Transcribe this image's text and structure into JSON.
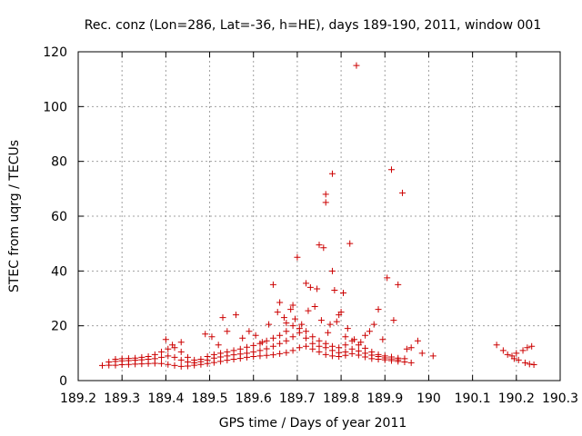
{
  "chart_data": {
    "type": "scatter",
    "title": "Rec. conz (Lon=286, Lat=-36, h=HE), days 189-190, 2011, window 001",
    "xlabel": "GPS time / Days of year 2011",
    "ylabel": "STEC from uqrg / TECUs",
    "xlim": [
      189.2,
      190.3
    ],
    "ylim": [
      0,
      120
    ],
    "xticks": [
      189.2,
      189.3,
      189.4,
      189.5,
      189.6,
      189.7,
      189.8,
      189.9,
      190.0,
      190.1,
      190.2,
      190.3
    ],
    "xtick_labels": [
      "189.2",
      "189.3",
      "189.4",
      "189.5",
      "189.6",
      "189.7",
      "189.8",
      "189.9",
      "190",
      "190.1",
      "190.2",
      "190.3"
    ],
    "yticks": [
      0,
      20,
      40,
      60,
      80,
      100,
      120
    ],
    "ytick_labels": [
      "0",
      "20",
      "40",
      "60",
      "80",
      "100",
      "120"
    ],
    "grid": true,
    "legend": "none",
    "marker": "plus",
    "color": "#cc0000",
    "series": [
      {
        "points": [
          [
            189.255,
            5.5
          ],
          [
            189.27,
            5.6
          ],
          [
            189.285,
            5.6
          ],
          [
            189.3,
            5.8
          ],
          [
            189.315,
            5.9
          ],
          [
            189.33,
            6.0
          ],
          [
            189.345,
            6.1
          ],
          [
            189.36,
            6.2
          ],
          [
            189.375,
            6.3
          ],
          [
            189.39,
            6.2
          ],
          [
            189.405,
            5.9
          ],
          [
            189.42,
            5.5
          ],
          [
            189.435,
            5.2
          ],
          [
            189.45,
            5.3
          ],
          [
            189.465,
            5.6
          ],
          [
            189.48,
            5.9
          ],
          [
            189.495,
            6.2
          ],
          [
            189.51,
            6.6
          ],
          [
            189.525,
            7.0
          ],
          [
            189.54,
            7.4
          ],
          [
            189.555,
            7.8
          ],
          [
            189.57,
            8.1
          ],
          [
            189.585,
            8.5
          ],
          [
            189.6,
            8.8
          ],
          [
            189.615,
            9.0
          ],
          [
            189.63,
            9.2
          ],
          [
            189.645,
            9.4
          ],
          [
            189.66,
            9.8
          ],
          [
            189.675,
            10.2
          ],
          [
            189.69,
            11.0
          ],
          [
            189.705,
            12.0
          ],
          [
            189.72,
            12.5
          ],
          [
            189.735,
            11.5
          ],
          [
            189.75,
            10.5
          ],
          [
            189.765,
            9.5
          ],
          [
            189.78,
            9.0
          ],
          [
            189.795,
            8.8
          ],
          [
            189.81,
            9.2
          ],
          [
            189.825,
            9.8
          ],
          [
            189.84,
            9.3
          ],
          [
            189.855,
            8.6
          ],
          [
            189.87,
            8.0
          ],
          [
            189.885,
            7.8
          ],
          [
            189.9,
            7.6
          ],
          [
            189.915,
            7.3
          ],
          [
            189.93,
            7.0
          ],
          [
            189.945,
            6.8
          ],
          [
            189.96,
            6.5
          ],
          [
            189.27,
            6.8
          ],
          [
            189.285,
            7.0
          ],
          [
            189.3,
            7.2
          ],
          [
            189.315,
            7.3
          ],
          [
            189.33,
            7.4
          ],
          [
            189.345,
            7.6
          ],
          [
            189.36,
            7.8
          ],
          [
            189.375,
            8.0
          ],
          [
            189.39,
            8.5
          ],
          [
            189.405,
            9.0
          ],
          [
            189.42,
            8.5
          ],
          [
            189.435,
            7.5
          ],
          [
            189.45,
            6.8
          ],
          [
            189.465,
            6.5
          ],
          [
            189.48,
            6.9
          ],
          [
            189.495,
            7.5
          ],
          [
            189.51,
            8.2
          ],
          [
            189.525,
            8.6
          ],
          [
            189.54,
            9.0
          ],
          [
            189.555,
            9.4
          ],
          [
            189.57,
            9.7
          ],
          [
            189.585,
            10.0
          ],
          [
            189.6,
            10.5
          ],
          [
            189.615,
            11.0
          ],
          [
            189.63,
            11.6
          ],
          [
            189.645,
            12.5
          ],
          [
            189.66,
            13.5
          ],
          [
            189.675,
            14.5
          ],
          [
            189.69,
            16.0
          ],
          [
            189.705,
            17.5
          ],
          [
            189.72,
            15.5
          ],
          [
            189.735,
            13.5
          ],
          [
            189.75,
            12.5
          ],
          [
            189.765,
            12.0
          ],
          [
            189.78,
            11.0
          ],
          [
            189.795,
            10.2
          ],
          [
            189.81,
            10.5
          ],
          [
            189.825,
            11.5
          ],
          [
            189.84,
            10.8
          ],
          [
            189.855,
            10.0
          ],
          [
            189.87,
            9.3
          ],
          [
            189.885,
            8.8
          ],
          [
            189.9,
            8.3
          ],
          [
            189.915,
            7.9
          ],
          [
            189.93,
            7.6
          ],
          [
            189.285,
            7.8
          ],
          [
            189.3,
            8.0
          ],
          [
            189.315,
            8.1
          ],
          [
            189.33,
            8.2
          ],
          [
            189.345,
            8.5
          ],
          [
            189.36,
            8.8
          ],
          [
            189.375,
            9.5
          ],
          [
            189.39,
            10.5
          ],
          [
            189.405,
            11.5
          ],
          [
            189.42,
            12.0
          ],
          [
            189.435,
            10.5
          ],
          [
            189.45,
            8.5
          ],
          [
            189.465,
            7.5
          ],
          [
            189.48,
            7.8
          ],
          [
            189.495,
            8.8
          ],
          [
            189.51,
            9.5
          ],
          [
            189.525,
            10.0
          ],
          [
            189.54,
            10.5
          ],
          [
            189.555,
            11.0
          ],
          [
            189.57,
            11.5
          ],
          [
            189.585,
            12.2
          ],
          [
            189.6,
            12.8
          ],
          [
            189.615,
            13.5
          ],
          [
            189.63,
            14.5
          ],
          [
            189.645,
            15.5
          ],
          [
            189.66,
            16.5
          ],
          [
            189.675,
            18.0
          ],
          [
            189.69,
            20.0
          ],
          [
            189.705,
            19.0
          ],
          [
            189.72,
            18.0
          ],
          [
            189.735,
            16.0
          ],
          [
            189.75,
            14.5
          ],
          [
            189.765,
            13.5
          ],
          [
            189.78,
            12.5
          ],
          [
            189.795,
            12.0
          ],
          [
            189.81,
            13.0
          ],
          [
            189.825,
            14.5
          ],
          [
            189.84,
            13.0
          ],
          [
            189.855,
            11.8
          ],
          [
            189.87,
            10.5
          ],
          [
            189.885,
            9.5
          ],
          [
            189.9,
            9.0
          ],
          [
            189.915,
            8.6
          ],
          [
            189.93,
            8.2
          ],
          [
            189.945,
            8.0
          ],
          [
            189.4,
            15.0
          ],
          [
            189.415,
            13.0
          ],
          [
            189.435,
            14.0
          ],
          [
            189.49,
            17.0
          ],
          [
            189.505,
            16.0
          ],
          [
            189.52,
            13.0
          ],
          [
            189.53,
            23.0
          ],
          [
            189.54,
            18.0
          ],
          [
            189.56,
            24.0
          ],
          [
            189.575,
            15.5
          ],
          [
            189.59,
            18.0
          ],
          [
            189.605,
            16.5
          ],
          [
            189.62,
            14.0
          ],
          [
            189.635,
            20.5
          ],
          [
            189.645,
            35.0
          ],
          [
            189.655,
            25.0
          ],
          [
            189.66,
            28.5
          ],
          [
            189.67,
            23.0
          ],
          [
            189.675,
            21.0
          ],
          [
            189.685,
            26.0
          ],
          [
            189.69,
            27.5
          ],
          [
            189.695,
            22.5
          ],
          [
            189.7,
            45.0
          ],
          [
            189.71,
            20.5
          ],
          [
            189.72,
            35.5
          ],
          [
            189.725,
            25.5
          ],
          [
            189.73,
            34.0
          ],
          [
            189.74,
            27.0
          ],
          [
            189.745,
            33.5
          ],
          [
            189.75,
            49.5
          ],
          [
            189.755,
            22.0
          ],
          [
            189.76,
            48.5
          ],
          [
            189.765,
            65.0
          ],
          [
            189.765,
            68.0
          ],
          [
            189.77,
            17.5
          ],
          [
            189.775,
            20.5
          ],
          [
            189.78,
            40.0
          ],
          [
            189.78,
            75.5
          ],
          [
            189.785,
            33.0
          ],
          [
            189.79,
            21.5
          ],
          [
            189.795,
            24.0
          ],
          [
            189.8,
            25.0
          ],
          [
            189.805,
            32.0
          ],
          [
            189.81,
            16.0
          ],
          [
            189.815,
            19.0
          ],
          [
            189.82,
            50.0
          ],
          [
            189.83,
            15.0
          ],
          [
            189.835,
            115.0
          ],
          [
            189.845,
            14.0
          ],
          [
            189.855,
            16.5
          ],
          [
            189.865,
            18.0
          ],
          [
            189.875,
            20.5
          ],
          [
            189.885,
            26.0
          ],
          [
            189.895,
            15.0
          ],
          [
            189.905,
            37.5
          ],
          [
            189.915,
            77.0
          ],
          [
            189.92,
            22.0
          ],
          [
            189.93,
            35.0
          ],
          [
            189.94,
            68.5
          ],
          [
            189.95,
            11.5
          ],
          [
            189.96,
            12.0
          ],
          [
            189.975,
            14.5
          ],
          [
            189.985,
            10.0
          ],
          [
            190.01,
            9.0
          ],
          [
            190.155,
            13.0
          ],
          [
            190.17,
            11.0
          ],
          [
            190.18,
            9.5
          ],
          [
            190.19,
            9.0
          ],
          [
            190.195,
            8.0
          ],
          [
            190.2,
            10.0
          ],
          [
            190.205,
            7.5
          ],
          [
            190.215,
            11.0
          ],
          [
            190.22,
            6.5
          ],
          [
            190.225,
            12.0
          ],
          [
            190.23,
            6.0
          ],
          [
            190.235,
            12.5
          ],
          [
            190.24,
            5.8
          ]
        ]
      }
    ]
  }
}
